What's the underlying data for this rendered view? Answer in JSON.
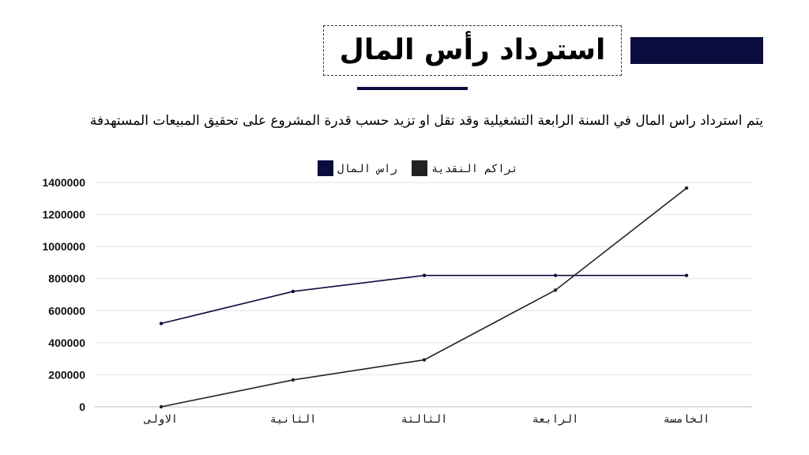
{
  "slide": {
    "title": "استرداد رأس المال",
    "description": "يتم استرداد راس المال في السنة الرابعة التشغيلية وقد تقل او تزيد حسب قدرة المشروع على تحقيق المبيعات المستهدفة",
    "accent_color": "#0b0d3f"
  },
  "chart_data": {
    "type": "line",
    "categories": [
      "الاولى",
      "الثانية",
      "الثالثة",
      "الرابعة",
      "الخامسة"
    ],
    "ylim": [
      0,
      1400000
    ],
    "yticks": [
      0,
      200000,
      400000,
      600000,
      800000,
      1000000,
      1200000,
      1400000
    ],
    "grid": true,
    "legend_position": "top",
    "series": [
      {
        "name": "راس المال",
        "color": "#0b0d3f",
        "values": [
          520000,
          720000,
          820000,
          820000,
          820000
        ]
      },
      {
        "name": "تراكم النقدية",
        "color": "#222222",
        "values": [
          0,
          168000,
          293000,
          728000,
          1365000
        ]
      }
    ]
  }
}
